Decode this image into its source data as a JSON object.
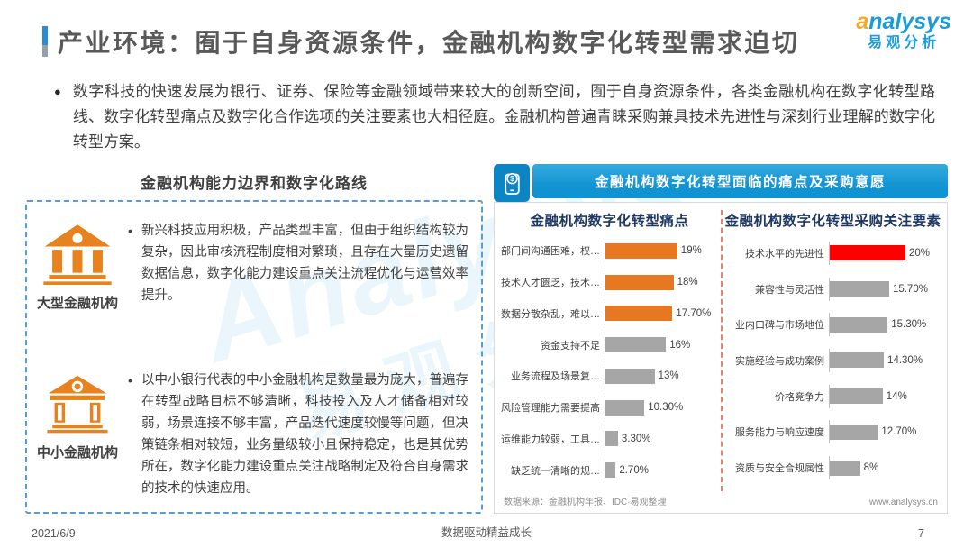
{
  "page": {
    "title": "产业环境：囿于自身资源条件，金融机构数字化转型需求迫切",
    "intro_bullet_marker": "●",
    "intro_text": "数字科技的快速发展为银行、证券、保险等金融领域带来较大的创新空间，囿于自身资源条件，各类金融机构在数字化转型路线、数字化转型痛点及数字化合作选项的关注要素也大相径庭。金融机构普遍青睐采购兼具技术先进性与深刻行业理解的数字化转型方案。",
    "footer": {
      "date": "2021/6/9",
      "slogan": "数据驱动精益成长",
      "page_number": "7"
    }
  },
  "logo": {
    "brand_first_letter": "a",
    "brand_rest": "nalysys",
    "brand_cn": "易观分析"
  },
  "watermark": {
    "line_en": "Analysys",
    "line_cn": "易观分析"
  },
  "left_panel": {
    "heading": "金融机构能力边界和数字化路线",
    "items": [
      {
        "icon": "bank-building-icon",
        "label": "大型金融机构",
        "text": "新兴科技应用积极，产品类型丰富，但由于组织结构较为复杂，因此审核流程制度相对繁琐，且存在大量历史遗留数据信息，数字化能力建设重点关注流程优化与运营效率提升。"
      },
      {
        "icon": "bank-building-outline-icon",
        "label": "中小金融机构",
        "text": "以中小银行代表的中小金融机构是数量最为庞大，普遍存在转型战略目标不够清晰，科技投入及人才储备相对较弱，场景连接不够丰富，产品迭代速度较慢等问题，但决策链条相对较短，业务量级较小且保持稳定，也是其优势所在，数字化能力建设重点关注战略制定及符合自身需求的技术的快速应用。"
      }
    ]
  },
  "right_panel": {
    "header": "金融机构数字化转型面临的痛点及采购意愿",
    "header_icon": "mobile-payment-icon",
    "source": "数据来源：金融机构年报、IDC·易观整理",
    "website": "www.analysys.cn"
  },
  "chart_data": [
    {
      "type": "bar",
      "orientation": "horizontal",
      "title": "金融机构数字化转型痛点",
      "categories": [
        "部门间沟通困难，权…",
        "技术人才匮乏，技术…",
        "数据分散杂乱，难以…",
        "资金支持不足",
        "业务流程及场景复…",
        "风险管理能力需要提高",
        "运维能力较弱，工具…",
        "缺乏统一清晰的规…"
      ],
      "values": [
        19,
        18,
        17.7,
        16,
        13,
        10.3,
        3.3,
        2.7
      ],
      "value_labels": [
        "19%",
        "18%",
        "17.70%",
        "16%",
        "13%",
        "10.30%",
        "3.30%",
        "2.70%"
      ],
      "bar_colors": [
        "#e87722",
        "#e87722",
        "#e87722",
        "#a6a6a6",
        "#a6a6a6",
        "#a6a6a6",
        "#a6a6a6",
        "#a6a6a6"
      ],
      "xlim": [
        0,
        20
      ],
      "grid": false,
      "legend": false
    },
    {
      "type": "bar",
      "orientation": "horizontal",
      "title": "金融机构数字化转型采购关注要素",
      "categories": [
        "技术水平的先进性",
        "兼容性与灵活性",
        "业内口碑与市场地位",
        "实施经验与成功案例",
        "价格竞争力",
        "服务能力与响应速度",
        "资质与安全合规属性"
      ],
      "values": [
        20,
        15.7,
        15.3,
        14.3,
        14,
        12.7,
        8
      ],
      "value_labels": [
        "20%",
        "15.70%",
        "15.30%",
        "14.30%",
        "14%",
        "12.70%",
        "8%"
      ],
      "bar_colors": [
        "#fe0000",
        "#a6a6a6",
        "#a6a6a6",
        "#a6a6a6",
        "#a6a6a6",
        "#a6a6a6",
        "#a6a6a6"
      ],
      "xlim": [
        0,
        20
      ],
      "grid": false,
      "legend": false
    }
  ],
  "colors": {
    "accent_blue": "#2a8dd4",
    "header_blue": "#0f93d2",
    "bar_orange": "#e87722",
    "bar_gray": "#a6a6a6",
    "bar_red": "#fe0000",
    "brand_blue": "#1b9bd8",
    "brand_orange": "#f7a823",
    "panel_border_blue": "#5b9bd5",
    "divider_orange": "#e8836a",
    "icon_orange": "#e8821e"
  }
}
